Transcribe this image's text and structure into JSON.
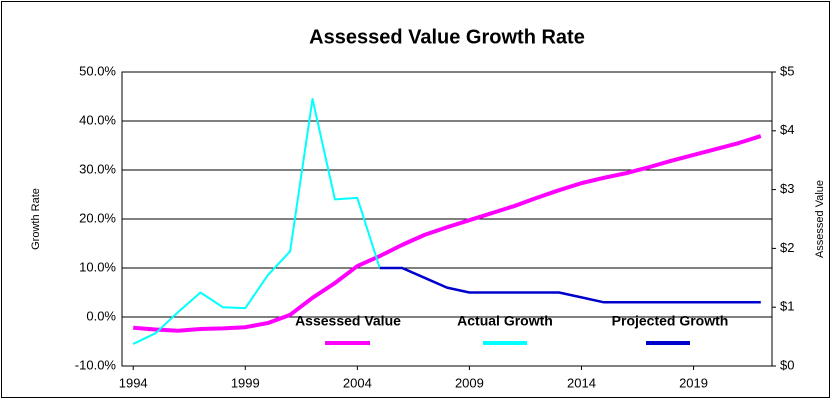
{
  "chart_data": {
    "type": "line",
    "title": "Assessed Value Growth Rate",
    "ylabel": "Growth Rate",
    "y2label": "Assessed Value",
    "x": [
      1994,
      1995,
      1996,
      1997,
      1998,
      1999,
      2000,
      2001,
      2002,
      2003,
      2004,
      2005,
      2006,
      2007,
      2008,
      2009,
      2010,
      2011,
      2012,
      2013,
      2014,
      2015,
      2016,
      2017,
      2018,
      2019,
      2020,
      2021,
      2022
    ],
    "series": [
      {
        "name": "Assessed Value",
        "color": "#ff00ff",
        "axis": "y2",
        "values": [
          0.65,
          0.62,
          0.6,
          0.63,
          0.64,
          0.66,
          0.73,
          0.87,
          1.16,
          1.41,
          1.7,
          1.87,
          2.06,
          2.23,
          2.36,
          2.48,
          2.6,
          2.72,
          2.86,
          2.99,
          3.11,
          3.2,
          3.28,
          3.38,
          3.49,
          3.59,
          3.69,
          3.79,
          3.91
        ]
      },
      {
        "name": "Actual Growth",
        "color": "#00ffff",
        "values": [
          -5.5,
          -3.3,
          1,
          5,
          2,
          1.8,
          8.5,
          13.4,
          44.5,
          24,
          24.3,
          10,
          null,
          null,
          null,
          null,
          null,
          null,
          null,
          null,
          null,
          null,
          null,
          null,
          null,
          null,
          null,
          null,
          null
        ]
      },
      {
        "name": "Projected Growth",
        "color": "#0000cc",
        "values": [
          null,
          null,
          null,
          null,
          null,
          null,
          null,
          null,
          null,
          null,
          null,
          10,
          10,
          8,
          6,
          5,
          5,
          5,
          5,
          5,
          4,
          3,
          3,
          3,
          3,
          3,
          3,
          3,
          3
        ]
      }
    ],
    "xlim": [
      1993.5,
      2022.5
    ],
    "xticks": [
      1994,
      1999,
      2004,
      2009,
      2014,
      2019
    ],
    "ylim": [
      -10,
      50
    ],
    "yticks": [
      {
        "value": -10,
        "label": "-10.0%"
      },
      {
        "value": 0,
        "label": "0.0%"
      },
      {
        "value": 10,
        "label": "10.0%"
      },
      {
        "value": 20,
        "label": "20.0%"
      },
      {
        "value": 30,
        "label": "30.0%"
      },
      {
        "value": 40,
        "label": "40.0%"
      },
      {
        "value": 50,
        "label": "50.0%"
      }
    ],
    "y2lim": [
      0,
      5
    ],
    "y2ticks": [
      {
        "value": 0,
        "label": "$0"
      },
      {
        "value": 1,
        "label": "$1"
      },
      {
        "value": 2,
        "label": "$2"
      },
      {
        "value": 3,
        "label": "$3"
      },
      {
        "value": 4,
        "label": "$4"
      },
      {
        "value": 5,
        "label": "$5"
      }
    ],
    "grid": true
  }
}
